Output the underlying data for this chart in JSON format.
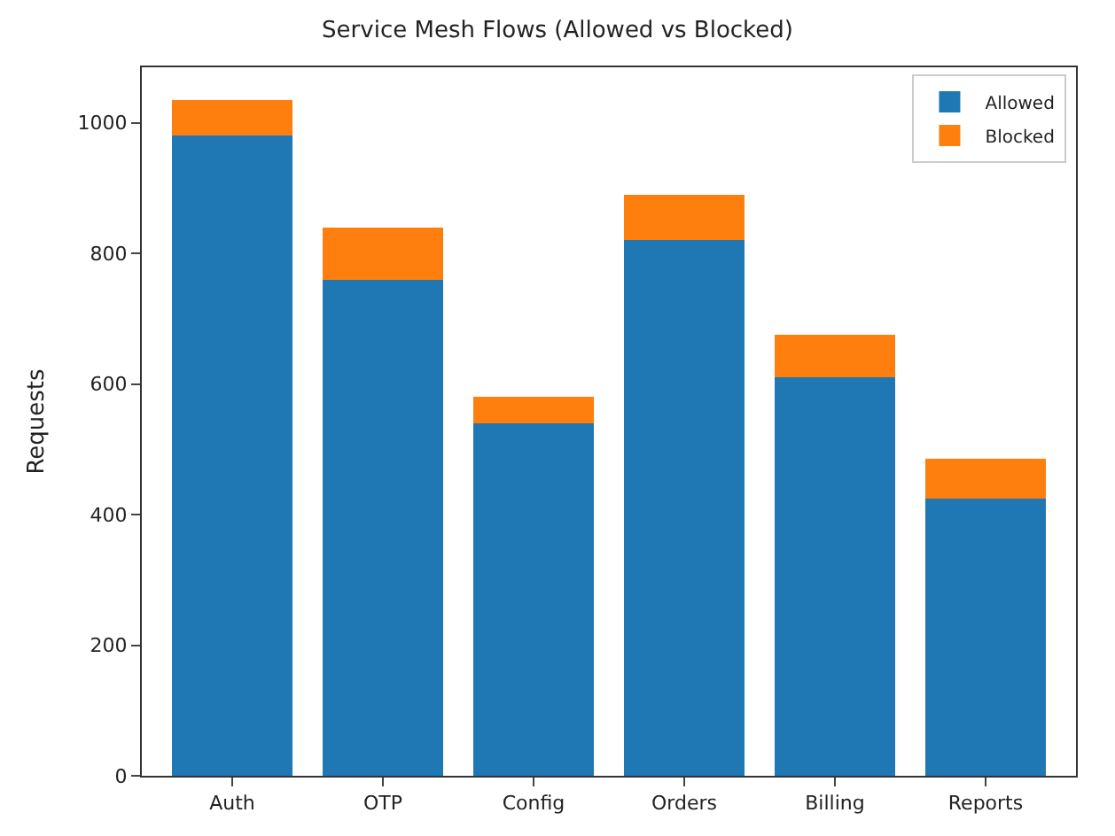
{
  "chart_data": {
    "type": "bar",
    "title": "Service Mesh Flows (Allowed vs Blocked)",
    "ylabel": "Requests",
    "categories": [
      "Auth",
      "OTP",
      "Config",
      "Orders",
      "Billing",
      "Reports"
    ],
    "stacked": true,
    "series": [
      {
        "name": "Allowed",
        "color": "#1f77b4",
        "values": [
          980,
          760,
          540,
          820,
          610,
          425
        ]
      },
      {
        "name": "Blocked",
        "color": "#ff7f0e",
        "values": [
          55,
          80,
          40,
          70,
          65,
          60
        ]
      }
    ],
    "ylim": [
      0,
      1085
    ],
    "yticks": [
      0,
      200,
      400,
      600,
      800,
      1000
    ],
    "legend": "top right"
  }
}
